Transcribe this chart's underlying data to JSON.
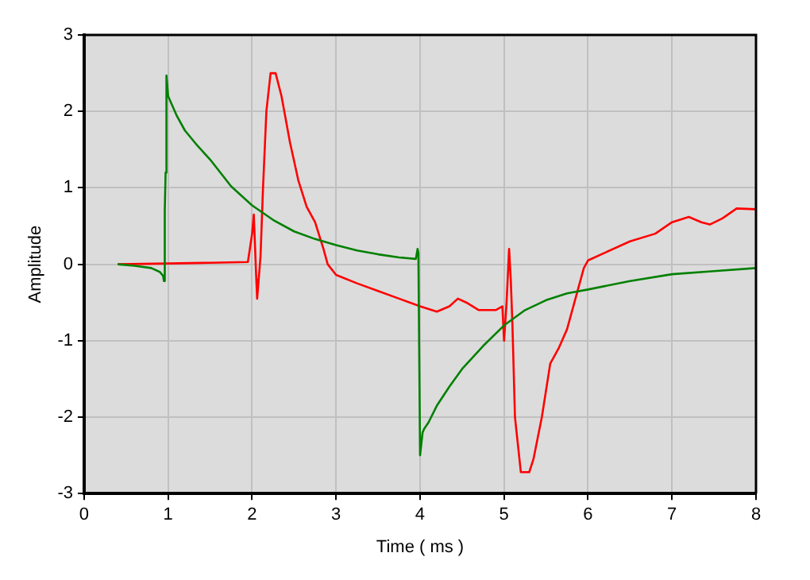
{
  "chart_data": {
    "type": "line",
    "xlabel": "Time ( ms )",
    "ylabel": "Amplitude",
    "xlim": [
      0,
      8
    ],
    "ylim": [
      -3,
      3
    ],
    "xticks": [
      0,
      1,
      2,
      3,
      4,
      5,
      6,
      7,
      8
    ],
    "yticks": [
      -3,
      -2,
      -1,
      0,
      1,
      2,
      3
    ],
    "grid": true,
    "legend": false,
    "marker": "none",
    "line_style": "solid",
    "series": [
      {
        "color": "#008000",
        "x": [
          0.4,
          0.6,
          0.8,
          0.9,
          0.94,
          0.95,
          0.96,
          0.97,
          0.98,
          1.0,
          1.1,
          1.2,
          1.35,
          1.5,
          1.75,
          2.0,
          2.25,
          2.5,
          2.75,
          3.0,
          3.25,
          3.5,
          3.75,
          3.95,
          3.97,
          3.98,
          4.0,
          4.03,
          4.05,
          4.1,
          4.2,
          4.35,
          4.5,
          4.75,
          5.0,
          5.25,
          5.5,
          5.75,
          6.0,
          6.5,
          7.0,
          7.5,
          8.0
        ],
        "values": [
          0,
          -0.02,
          -0.05,
          -0.1,
          -0.15,
          -0.22,
          0.7,
          1.2,
          2.47,
          2.2,
          1.95,
          1.75,
          1.55,
          1.37,
          1.02,
          0.77,
          0.58,
          0.43,
          0.33,
          0.25,
          0.18,
          0.13,
          0.09,
          0.07,
          0.2,
          0.15,
          -2.5,
          -2.2,
          -2.15,
          -2.07,
          -1.85,
          -1.6,
          -1.37,
          -1.07,
          -0.8,
          -0.6,
          -0.47,
          -0.38,
          -0.33,
          -0.22,
          -0.13,
          -0.09,
          -0.05
        ]
      },
      {
        "color": "#ff0000",
        "x": [
          0.4,
          1.0,
          1.5,
          1.95,
          2.0,
          2.02,
          2.05,
          2.06,
          2.1,
          2.13,
          2.17,
          2.22,
          2.28,
          2.35,
          2.45,
          2.55,
          2.65,
          2.75,
          2.85,
          2.9,
          3.0,
          3.25,
          3.5,
          3.75,
          4.0,
          4.2,
          4.35,
          4.45,
          4.55,
          4.7,
          4.9,
          4.98,
          5.0,
          5.03,
          5.06,
          5.08,
          5.1,
          5.13,
          5.2,
          5.3,
          5.35,
          5.45,
          5.55,
          5.65,
          5.75,
          5.85,
          5.95,
          6.0,
          6.2,
          6.5,
          6.8,
          7.0,
          7.2,
          7.35,
          7.45,
          7.6,
          7.77,
          8.0
        ],
        "values": [
          0,
          0.01,
          0.02,
          0.03,
          0.4,
          0.65,
          -0.2,
          -0.45,
          0.1,
          1.0,
          2.0,
          2.5,
          2.5,
          2.2,
          1.6,
          1.1,
          0.75,
          0.55,
          0.2,
          0.0,
          -0.14,
          -0.25,
          -0.35,
          -0.45,
          -0.55,
          -0.62,
          -0.55,
          -0.45,
          -0.5,
          -0.6,
          -0.6,
          -0.55,
          -1.0,
          -0.5,
          0.2,
          -0.2,
          -0.8,
          -2.0,
          -2.72,
          -2.72,
          -2.55,
          -2.0,
          -1.3,
          -1.1,
          -0.85,
          -0.45,
          -0.05,
          0.05,
          0.15,
          0.3,
          0.4,
          0.55,
          0.62,
          0.55,
          0.52,
          0.6,
          0.73,
          0.72
        ]
      }
    ]
  }
}
